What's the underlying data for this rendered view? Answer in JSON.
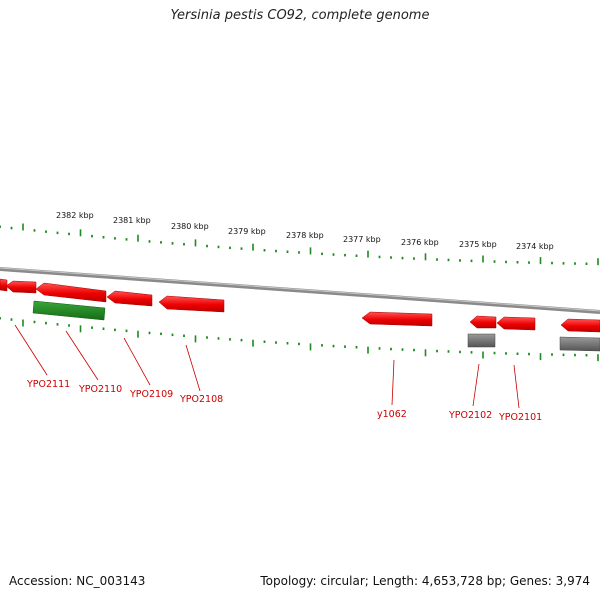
{
  "title": "Yersinia pestis CO92, complete genome",
  "footer": {
    "accession": "Accession: NC_003143",
    "summary": "Topology: circular; Length: 4,653,728 bp; Genes: 3,974"
  },
  "colors": {
    "forward_gene": "#ee0000",
    "rna_feature": "#1f8a1f",
    "other_feature": "#6f6f6f",
    "tick": "#1f8a1f",
    "backbone": "#8a8a8a",
    "label": "#cc0000"
  },
  "ruler": {
    "labels": [
      "2382 kbp",
      "2381 kbp",
      "2380 kbp",
      "2379 kbp",
      "2378 kbp",
      "2377 kbp",
      "2376 kbp",
      "2375 kbp",
      "2374 kbp"
    ]
  },
  "gene_labels": [
    "YPO2111",
    "YPO2110",
    "YPO2109",
    "YPO2108",
    "y1062",
    "YPO2102",
    "YPO2101"
  ]
}
